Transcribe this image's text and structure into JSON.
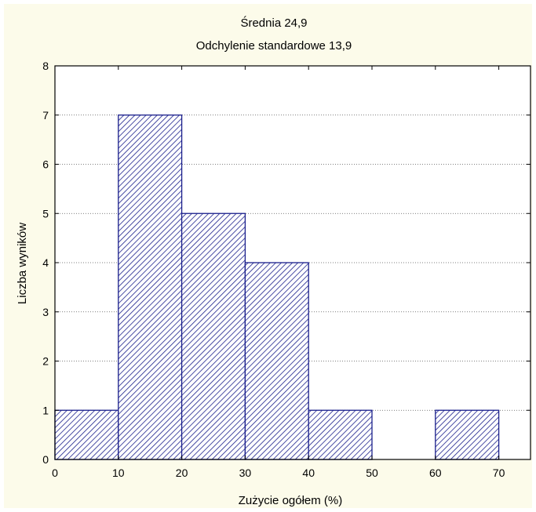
{
  "chart_data": {
    "type": "bar",
    "title": "Średnia 24,9",
    "subtitle": "Odchylenie standardowe 13,9",
    "xlabel": "Zużycie ogółem (%)",
    "ylabel": "Liczba wyników",
    "bins": [
      {
        "from": 0,
        "to": 10,
        "count": 1
      },
      {
        "from": 10,
        "to": 20,
        "count": 7
      },
      {
        "from": 20,
        "to": 30,
        "count": 5
      },
      {
        "from": 30,
        "to": 40,
        "count": 4
      },
      {
        "from": 40,
        "to": 50,
        "count": 1
      },
      {
        "from": 50,
        "to": 60,
        "count": 0
      },
      {
        "from": 60,
        "to": 70,
        "count": 1
      }
    ],
    "xlim": [
      0,
      75
    ],
    "ylim": [
      0,
      8
    ],
    "xticks": [
      "0",
      "10",
      "20",
      "30",
      "40",
      "50",
      "60",
      "70"
    ],
    "yticks": [
      "0",
      "1",
      "2",
      "3",
      "4",
      "5",
      "6",
      "7",
      "8"
    ],
    "grid": "horizontal dotted",
    "bar_fill": "diagonal hatch",
    "colors": {
      "bar_edge": "#1a1f8c",
      "hatch": "#1a1f8c",
      "background": "#fcfbea",
      "plot_area": "#ffffff",
      "grid": "#555555"
    }
  }
}
